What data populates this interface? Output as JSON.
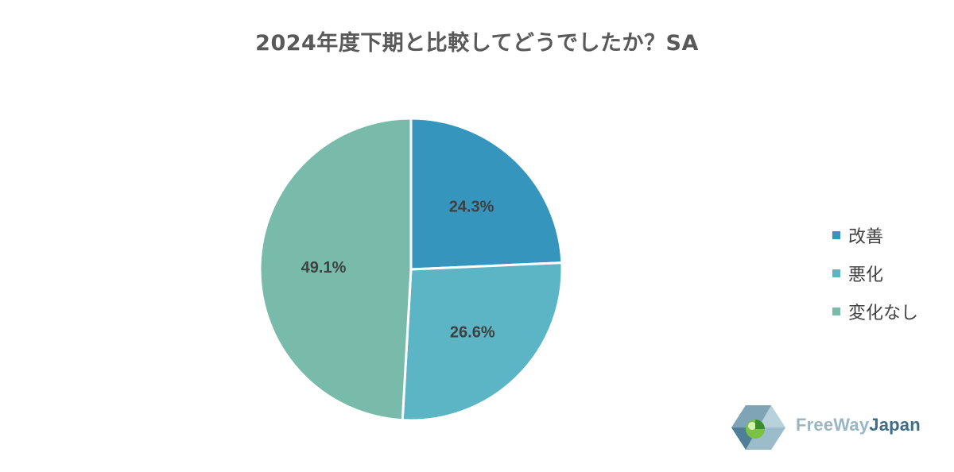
{
  "chart_data": {
    "type": "pie",
    "title": "2024年度下期と比較してどうでしたか？SA",
    "categories": [
      "改善",
      "悪化",
      "変化なし"
    ],
    "values": [
      24.3,
      26.6,
      49.1
    ],
    "data_labels": [
      "24.3%",
      "26.6%",
      "49.1%"
    ],
    "colors": [
      "#3595bc",
      "#5cb5c4",
      "#78bbaa"
    ],
    "legend_position": "right"
  },
  "logo": {
    "part1": "FreeWay",
    "part2": "Japan"
  }
}
